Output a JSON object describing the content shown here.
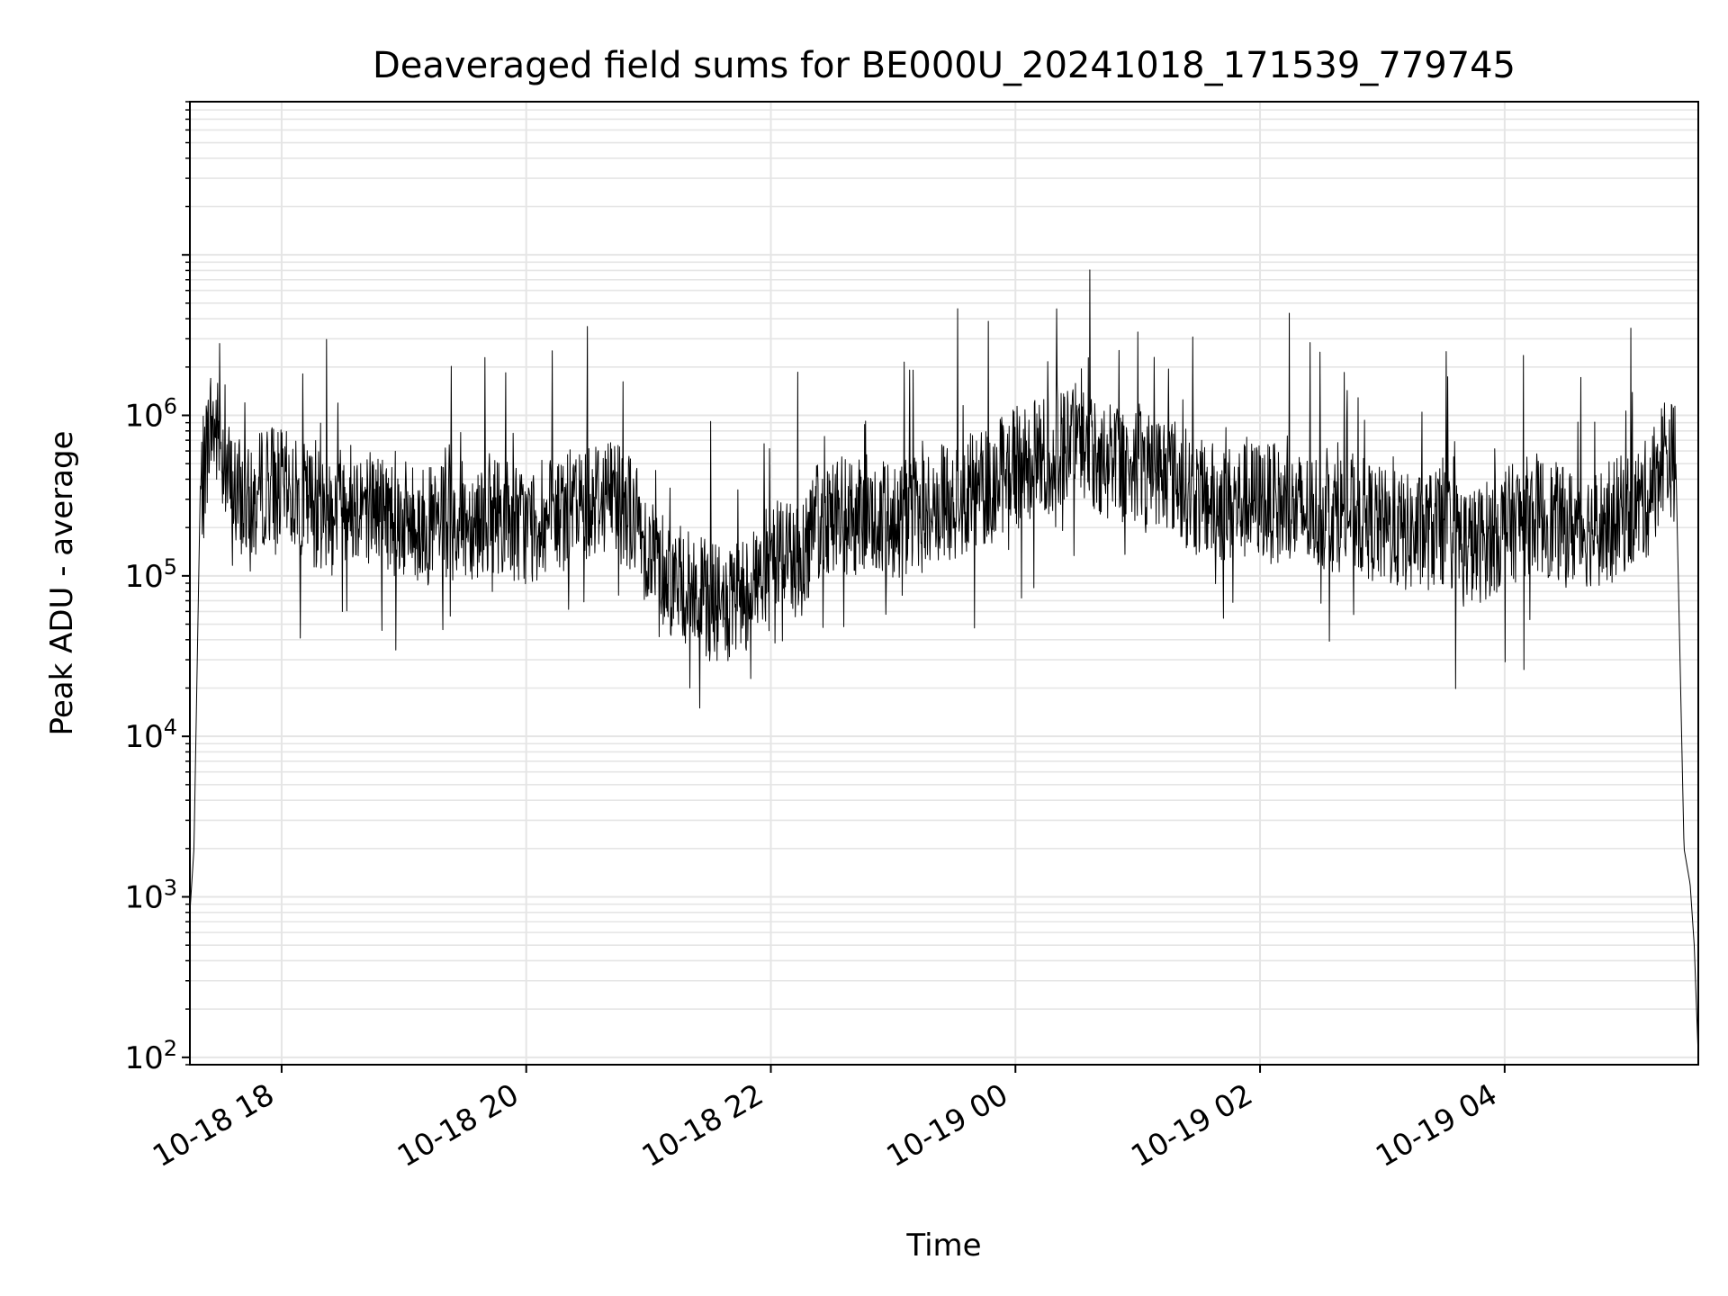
{
  "chart_data": {
    "type": "line",
    "title": "Deaveraged field sums for BE000U_20241018_171539_779745",
    "xlabel": "Time",
    "ylabel": "Peak ADU - average",
    "y_scale": "log",
    "ylim": [
      90,
      90000000
    ],
    "xlim": [
      "2024-10-18 17:15",
      "2024-10-19 05:35"
    ],
    "grid": true,
    "legend": "none",
    "line_color": "#000000",
    "grid_color": "#e5e5e5",
    "x_ticks": [
      {
        "value": "2024-10-18 18:00",
        "label": "10-18 18"
      },
      {
        "value": "2024-10-18 20:00",
        "label": "10-18 20"
      },
      {
        "value": "2024-10-18 22:00",
        "label": "10-18 22"
      },
      {
        "value": "2024-10-19 00:00",
        "label": "10-19 00"
      },
      {
        "value": "2024-10-19 02:00",
        "label": "10-19 02"
      },
      {
        "value": "2024-10-19 04:00",
        "label": "10-19 04"
      }
    ],
    "y_ticks": [
      {
        "value": 100,
        "base": "10",
        "exp": "2"
      },
      {
        "value": 1000,
        "base": "10",
        "exp": "3"
      },
      {
        "value": 10000,
        "base": "10",
        "exp": "4"
      },
      {
        "value": 100000,
        "base": "10",
        "exp": "5"
      },
      {
        "value": 1000000,
        "base": "10",
        "exp": "6"
      }
    ],
    "series": [
      {
        "x": [
          "2024-10-18 17:15",
          "2024-10-18 17:17",
          "2024-10-18 17:20",
          "2024-10-18 17:25",
          "2024-10-18 17:30",
          "2024-10-18 17:35",
          "2024-10-18 17:40",
          "2024-10-18 17:45",
          "2024-10-18 17:50",
          "2024-10-18 17:55",
          "2024-10-18 18:00",
          "2024-10-18 18:10",
          "2024-10-18 18:20",
          "2024-10-18 18:30",
          "2024-10-18 18:45",
          "2024-10-18 19:00",
          "2024-10-18 19:15",
          "2024-10-18 19:30",
          "2024-10-18 19:45",
          "2024-10-18 20:00",
          "2024-10-18 20:15",
          "2024-10-18 20:30",
          "2024-10-18 20:45",
          "2024-10-18 21:00",
          "2024-10-18 21:10",
          "2024-10-18 21:20",
          "2024-10-18 21:30",
          "2024-10-18 21:40",
          "2024-10-18 21:48",
          "2024-10-18 21:55",
          "2024-10-18 22:05",
          "2024-10-18 22:15",
          "2024-10-18 22:20",
          "2024-10-18 22:30",
          "2024-10-18 22:45",
          "2024-10-18 23:00",
          "2024-10-18 23:15",
          "2024-10-18 23:30",
          "2024-10-18 23:45",
          "2024-10-19 00:00",
          "2024-10-19 00:15",
          "2024-10-19 00:30",
          "2024-10-19 00:45",
          "2024-10-19 01:00",
          "2024-10-19 01:15",
          "2024-10-19 01:30",
          "2024-10-19 01:45",
          "2024-10-19 02:00",
          "2024-10-19 02:15",
          "2024-10-19 02:30",
          "2024-10-19 02:45",
          "2024-10-19 03:00",
          "2024-10-19 03:15",
          "2024-10-19 03:30",
          "2024-10-19 03:45",
          "2024-10-19 04:00",
          "2024-10-19 04:15",
          "2024-10-19 04:30",
          "2024-10-19 04:45",
          "2024-10-19 05:00",
          "2024-10-19 05:10",
          "2024-10-19 05:18",
          "2024-10-19 05:24",
          "2024-10-19 05:28",
          "2024-10-19 05:31",
          "2024-10-19 05:33",
          "2024-10-19 05:35"
        ],
        "y": [
          800,
          2000,
          300000,
          900000,
          700000,
          350000,
          300000,
          250000,
          350000,
          400000,
          350000,
          300000,
          250000,
          300000,
          280000,
          220000,
          200000,
          220000,
          250000,
          200000,
          230000,
          300000,
          350000,
          150000,
          100000,
          80000,
          70000,
          60000,
          80000,
          100000,
          150000,
          120000,
          200000,
          250000,
          220000,
          220000,
          250000,
          300000,
          350000,
          500000,
          550000,
          700000,
          500000,
          500000,
          450000,
          300000,
          280000,
          300000,
          250000,
          250000,
          250000,
          200000,
          180000,
          200000,
          150000,
          200000,
          250000,
          200000,
          200000,
          250000,
          300000,
          600000,
          500000,
          2000,
          1200,
          500,
          100
        ]
      }
    ]
  }
}
